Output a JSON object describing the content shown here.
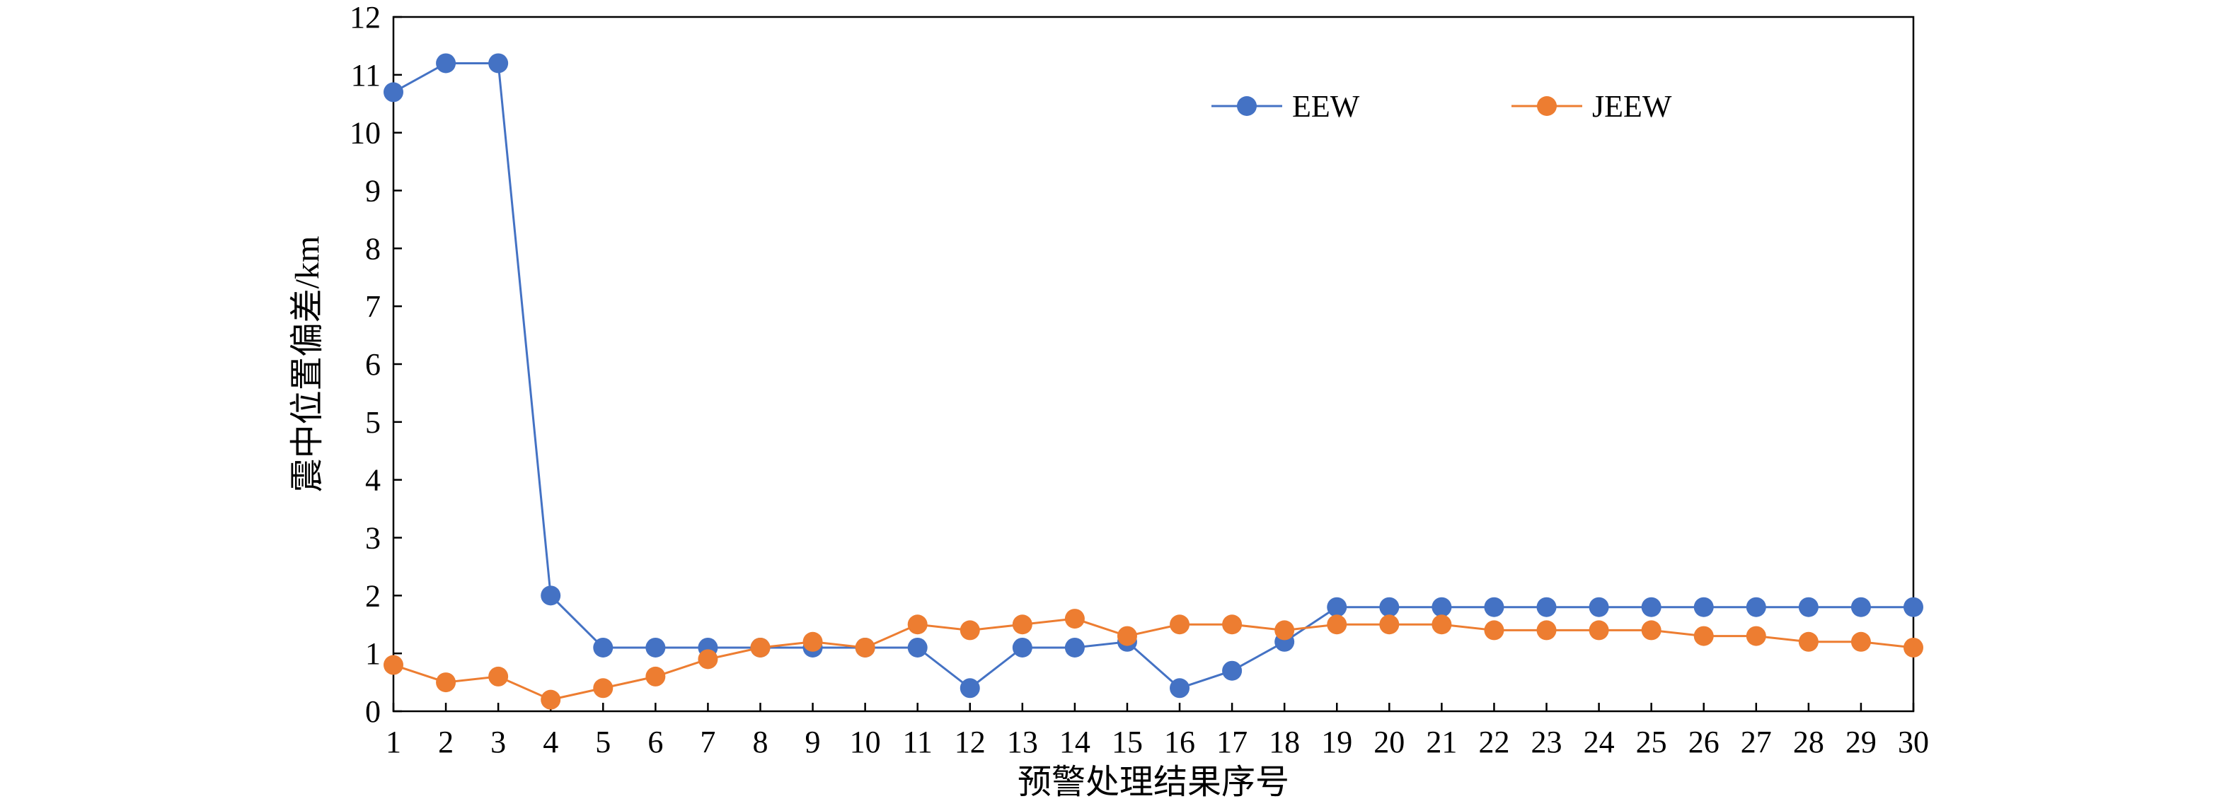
{
  "chart_data": {
    "type": "line",
    "xlabel": "预警处理结果序号",
    "ylabel": "震中位置偏差/km",
    "ylim": [
      0,
      12
    ],
    "yticks": [
      "0",
      "1",
      "2",
      "3",
      "4",
      "5",
      "6",
      "7",
      "8",
      "9",
      "10",
      "11",
      "12"
    ],
    "categories": [
      "1",
      "2",
      "3",
      "4",
      "5",
      "6",
      "7",
      "8",
      "9",
      "10",
      "11",
      "12",
      "13",
      "14",
      "15",
      "16",
      "17",
      "18",
      "19",
      "20",
      "21",
      "22",
      "23",
      "24",
      "25",
      "26",
      "27",
      "28",
      "29",
      "30"
    ],
    "grid": false,
    "legend_position": "top-right",
    "series": [
      {
        "name": "EEW",
        "color": "#4472C4",
        "marker": "circle",
        "values": [
          10.7,
          11.2,
          11.2,
          2.0,
          1.1,
          1.1,
          1.1,
          1.1,
          1.1,
          1.1,
          1.1,
          0.4,
          1.1,
          1.1,
          1.2,
          0.4,
          0.7,
          1.2,
          1.8,
          1.8,
          1.8,
          1.8,
          1.8,
          1.8,
          1.8,
          1.8,
          1.8,
          1.8,
          1.8,
          1.8
        ]
      },
      {
        "name": "JEEW",
        "color": "#ED7D31",
        "marker": "circle",
        "values": [
          0.8,
          0.5,
          0.6,
          0.2,
          0.4,
          0.6,
          0.9,
          1.1,
          1.2,
          1.1,
          1.5,
          1.4,
          1.5,
          1.6,
          1.3,
          1.5,
          1.5,
          1.4,
          1.5,
          1.5,
          1.5,
          1.4,
          1.4,
          1.4,
          1.4,
          1.3,
          1.3,
          1.2,
          1.2,
          1.1
        ]
      }
    ]
  }
}
